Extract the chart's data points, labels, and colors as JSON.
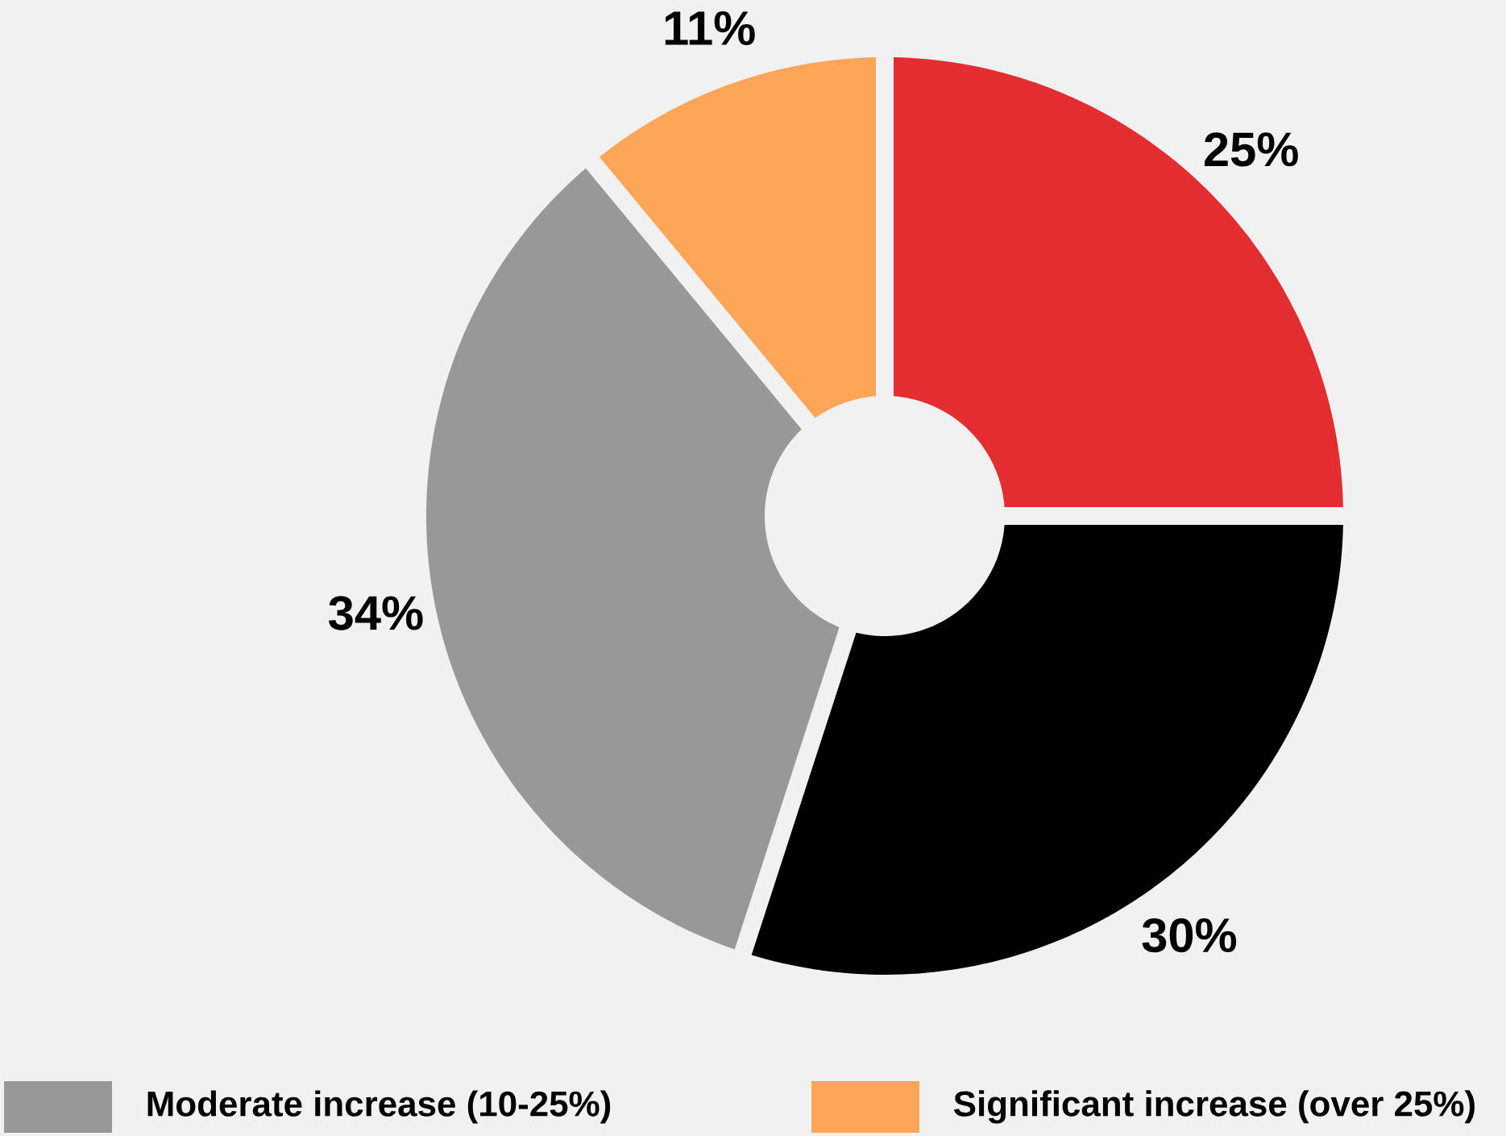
{
  "chart_data": {
    "type": "donut",
    "categories": [
      null,
      null,
      "Moderate increase (10-25%)",
      "Significant increase (over 25%)"
    ],
    "values": [
      25,
      30,
      34,
      11
    ],
    "colors": [
      "#e32d30",
      "#000000",
      "#989898",
      "#fda657"
    ],
    "value_labels": [
      "25%",
      "30%",
      "34%",
      "11%"
    ],
    "legend": "bottom"
  }
}
